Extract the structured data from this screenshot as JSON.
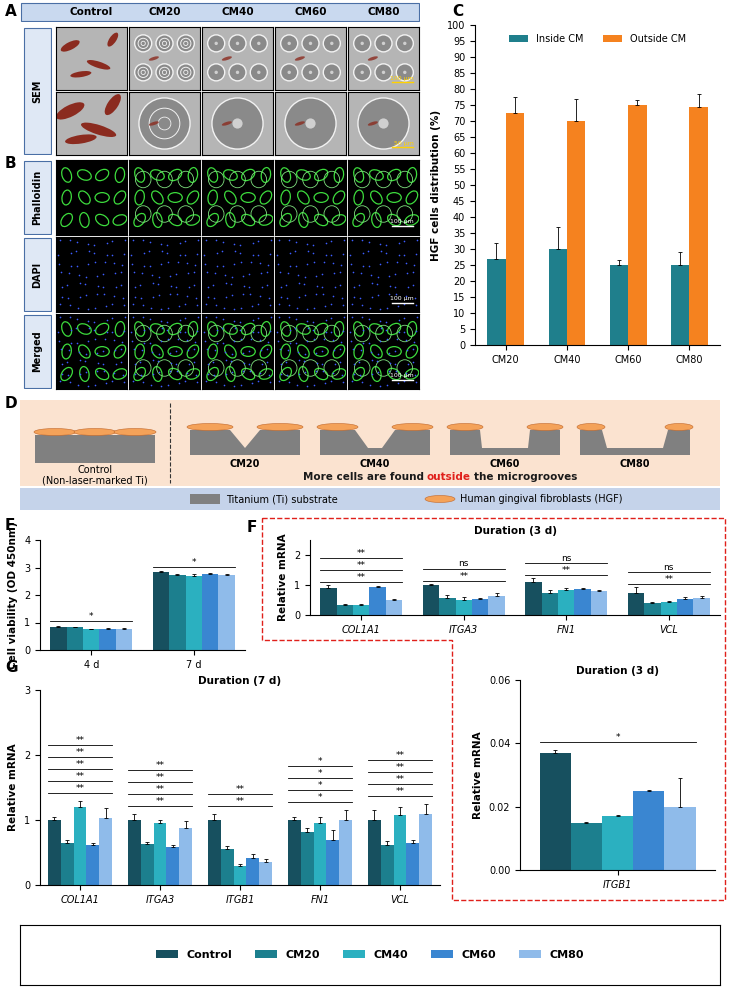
{
  "header": {
    "panel_label": "A",
    "columns": [
      "Control",
      "CM20",
      "CM40",
      "CM60",
      "CM80"
    ]
  },
  "panel_A": {
    "row_label": "SEM",
    "scale_bars": [
      "100 μm",
      "50 μm"
    ]
  },
  "panel_B": {
    "panel_label": "B",
    "rows": [
      "Phalloidin",
      "DAPI",
      "Merged"
    ],
    "scale_bar": "100 μm"
  },
  "panel_D": {
    "panel_label": "D",
    "control_label": [
      "Control",
      "(Non-laser-marked Ti)"
    ],
    "groove_labels": [
      "CM20",
      "CM40",
      "CM60",
      "CM80"
    ],
    "message": [
      {
        "text": "More cells are found",
        "color": "#1a1a1a"
      },
      {
        "text": "outside",
        "color": "#e0201b"
      },
      {
        "text": "the microgrooves",
        "color": "#1a1a1a"
      }
    ],
    "key": [
      "Titanium (Ti) substrate",
      "Human gingival fibroblasts (HGF)"
    ]
  },
  "chart_data": [
    {
      "panel_label": "C",
      "type": "bar",
      "y_label": "HGF cells distribution (%)",
      "categories": [
        "CM20",
        "CM40",
        "CM60",
        "CM80"
      ],
      "series": [
        {
          "name": "Inside CM",
          "color": "#1f7f8c",
          "values": [
            27,
            30,
            25,
            25
          ],
          "errors": [
            5,
            7,
            1.5,
            4
          ]
        },
        {
          "name": "Outside CM",
          "color": "#f5821f",
          "values": [
            72.5,
            70,
            75,
            74.5
          ],
          "errors": [
            5,
            7,
            1.5,
            4
          ]
        }
      ],
      "ylim": [
        0,
        100
      ],
      "yticks": [
        0,
        5,
        10,
        15,
        20,
        25,
        30,
        35,
        40,
        45,
        50,
        55,
        60,
        65,
        70,
        75,
        80,
        85,
        90,
        95,
        100
      ],
      "legend": "upper center"
    },
    {
      "panel_label": "E",
      "type": "bar",
      "y_label": "Cell viability (OD 450nm)",
      "categories": [
        "4 d",
        "7 d"
      ],
      "series": [
        {
          "name": "Control",
          "color": "#17505f",
          "values": [
            0.85,
            2.82
          ],
          "errors": [
            0.03,
            0.05
          ]
        },
        {
          "name": "CM20",
          "color": "#1c7f8e",
          "values": [
            0.82,
            2.72
          ],
          "errors": [
            0.02,
            0.04
          ]
        },
        {
          "name": "CM40",
          "color": "#2bb0c0",
          "values": [
            0.75,
            2.7
          ],
          "errors": [
            0.02,
            0.06
          ]
        },
        {
          "name": "CM60",
          "color": "#3a86d1",
          "values": [
            0.78,
            2.75
          ],
          "errors": [
            0.03,
            0.05
          ]
        },
        {
          "name": "CM80",
          "color": "#8fbbea",
          "values": [
            0.77,
            2.72
          ],
          "errors": [
            0.02,
            0.05
          ]
        }
      ],
      "ylim": [
        0,
        4
      ],
      "yticks": [
        0,
        1,
        2,
        3,
        4
      ],
      "significance": [
        [
          "*"
        ],
        [
          "*"
        ]
      ]
    },
    {
      "panel_label": "F",
      "type": "bar",
      "title": "Duration (3 d)",
      "y_label": "Relative mRNA",
      "categories": [
        "COL1A1",
        "ITGA3",
        "FN1",
        "VCL"
      ],
      "series": [
        {
          "name": "Control",
          "color": "#17505f",
          "values": [
            0.9,
            1.0,
            1.1,
            0.72
          ],
          "errors": [
            0.1,
            0.05,
            0.12,
            0.2
          ]
        },
        {
          "name": "CM20",
          "color": "#1c7f8e",
          "values": [
            0.33,
            0.58,
            0.72,
            0.4
          ],
          "errors": [
            0.03,
            0.08,
            0.12,
            0.05
          ]
        },
        {
          "name": "CM40",
          "color": "#2bb0c0",
          "values": [
            0.32,
            0.5,
            0.82,
            0.42
          ],
          "errors": [
            0.05,
            0.1,
            0.08,
            0.05
          ]
        },
        {
          "name": "CM60",
          "color": "#3a86d1",
          "values": [
            0.93,
            0.52,
            0.88,
            0.55
          ],
          "errors": [
            0.05,
            0.05,
            0.03,
            0.05
          ]
        },
        {
          "name": "CM80",
          "color": "#8fbbea",
          "values": [
            0.5,
            0.62,
            0.8,
            0.57
          ],
          "errors": [
            0.03,
            0.1,
            0.05,
            0.06
          ]
        }
      ],
      "ylim": [
        0,
        2.5
      ],
      "yticks": [
        0,
        1,
        2
      ],
      "significance": [
        [
          "**",
          "**",
          "**"
        ],
        [
          "**",
          "ns"
        ],
        [
          "**",
          "ns"
        ],
        [
          "**",
          "ns"
        ]
      ]
    },
    {
      "type": "bar",
      "title": "Duration (3 d)",
      "y_label": "Relative mRNA",
      "categories": [
        "ITGB1"
      ],
      "series": [
        {
          "name": "Control",
          "color": "#17505f",
          "values": [
            0.037
          ],
          "errors": [
            0.001
          ]
        },
        {
          "name": "CM20",
          "color": "#1c7f8e",
          "values": [
            0.015
          ],
          "errors": [
            0.0003
          ]
        },
        {
          "name": "CM40",
          "color": "#2bb0c0",
          "values": [
            0.017
          ],
          "errors": [
            0.0005
          ]
        },
        {
          "name": "CM60",
          "color": "#3a86d1",
          "values": [
            0.025
          ],
          "errors": [
            0.0003
          ]
        },
        {
          "name": "CM80",
          "color": "#8fbbea",
          "values": [
            0.02
          ],
          "errors": [
            0.009
          ]
        }
      ],
      "ylim": [
        0,
        0.06
      ],
      "yticks": [
        {
          "value": 0,
          "label": "0.00"
        },
        {
          "value": 0.02,
          "label": "0.02"
        },
        {
          "value": 0.04,
          "label": "0.04"
        },
        {
          "value": 0.06,
          "label": "0.06"
        }
      ],
      "significance": [
        [
          "*"
        ]
      ]
    },
    {
      "panel_label": "G",
      "type": "bar",
      "title": "Duration (7 d)",
      "y_label": "Relative mRNA",
      "categories": [
        "COL1A1",
        "ITGA3",
        "ITGB1",
        "FN1",
        "VCL"
      ],
      "series": [
        {
          "name": "Control",
          "color": "#17505f",
          "values": [
            1.0,
            1.0,
            1.0,
            1.0,
            1.0
          ],
          "errors": [
            0.05,
            0.1,
            0.1,
            0.05,
            0.15
          ]
        },
        {
          "name": "CM20",
          "color": "#1c7f8e",
          "values": [
            0.65,
            0.63,
            0.55,
            0.82,
            0.62
          ],
          "errors": [
            0.05,
            0.03,
            0.05,
            0.05,
            0.05
          ]
        },
        {
          "name": "CM40",
          "color": "#2bb0c0",
          "values": [
            1.2,
            0.95,
            0.3,
            0.95,
            1.08
          ],
          "errors": [
            0.1,
            0.05,
            0.02,
            0.1,
            0.12
          ]
        },
        {
          "name": "CM60",
          "color": "#3a86d1",
          "values": [
            0.62,
            0.58,
            0.42,
            0.7,
            0.65
          ],
          "errors": [
            0.03,
            0.03,
            0.05,
            0.15,
            0.05
          ]
        },
        {
          "name": "CM80",
          "color": "#8fbbea",
          "values": [
            1.03,
            0.88,
            0.35,
            1.0,
            1.1
          ],
          "errors": [
            0.15,
            0.1,
            0.05,
            0.15,
            0.15
          ]
        }
      ],
      "ylim": [
        0,
        3
      ],
      "yticks": [
        0,
        1,
        2,
        3
      ],
      "significance": [
        [
          "**",
          "**",
          "**",
          "**",
          "**"
        ],
        [
          "**",
          "**",
          "**",
          "**"
        ],
        [
          "**",
          "**"
        ],
        [
          "*",
          "*",
          "*",
          "*"
        ],
        [
          "**",
          "**",
          "**",
          "**"
        ]
      ]
    }
  ],
  "legend": {
    "entries": [
      "Control",
      "CM20",
      "CM40",
      "CM60",
      "CM80"
    ],
    "colors": [
      "#17505f",
      "#1c7f8e",
      "#2bb0c0",
      "#3a86d1",
      "#8fbbea"
    ]
  }
}
